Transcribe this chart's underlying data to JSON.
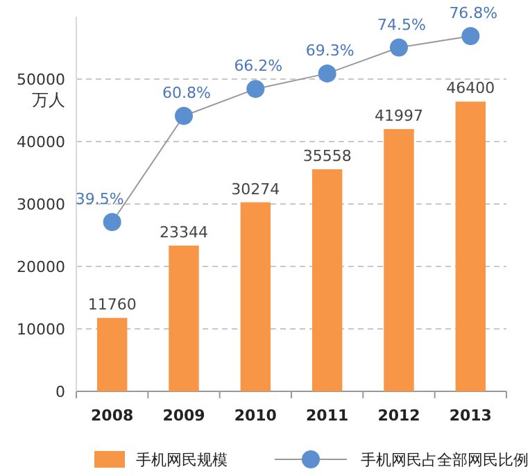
{
  "chart_data": {
    "type": "bar",
    "ylabel": "万人",
    "categories": [
      "2008",
      "2009",
      "2010",
      "2011",
      "2012",
      "2013"
    ],
    "series": [
      {
        "name": "手机网民规模",
        "color": "#f79646",
        "values": [
          11760,
          23344,
          30274,
          35558,
          41997,
          46400
        ]
      },
      {
        "name": "手机网民占全部网民比例",
        "type": "line",
        "axis": "y2",
        "color": "#999999",
        "colors": [
          "#5b8fd0",
          "#5b8fd0",
          "#5b8fd0",
          "#5b8fd0",
          "#5b8fd0",
          "#5b8fd0"
        ],
        "values": [
          39.5,
          60.8,
          66.2,
          69.3,
          74.5,
          76.8
        ],
        "value_labels": [
          "39.5%",
          "60.8%",
          "66.2%",
          "69.3%",
          "74.5%",
          "76.8%"
        ]
      }
    ],
    "ylim": [
      0,
      60000
    ],
    "yticks": [
      0,
      10000,
      20000,
      30000,
      40000,
      50000
    ],
    "data_labels": true,
    "grid": "y",
    "legend": "bottom",
    "marker": "circle"
  }
}
